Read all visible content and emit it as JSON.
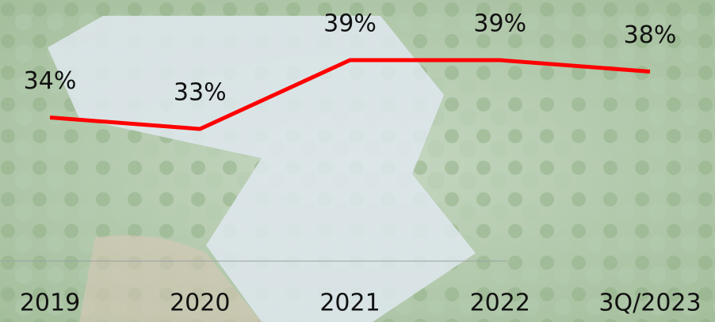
{
  "chart_data": {
    "type": "line",
    "categories": [
      "2019",
      "2020",
      "2021",
      "2022",
      "3Q/2023"
    ],
    "values": [
      34,
      33,
      39,
      39,
      38
    ],
    "value_labels": [
      "34%",
      "33%",
      "39%",
      "39%",
      "38%"
    ],
    "color": "#ff0000"
  }
}
